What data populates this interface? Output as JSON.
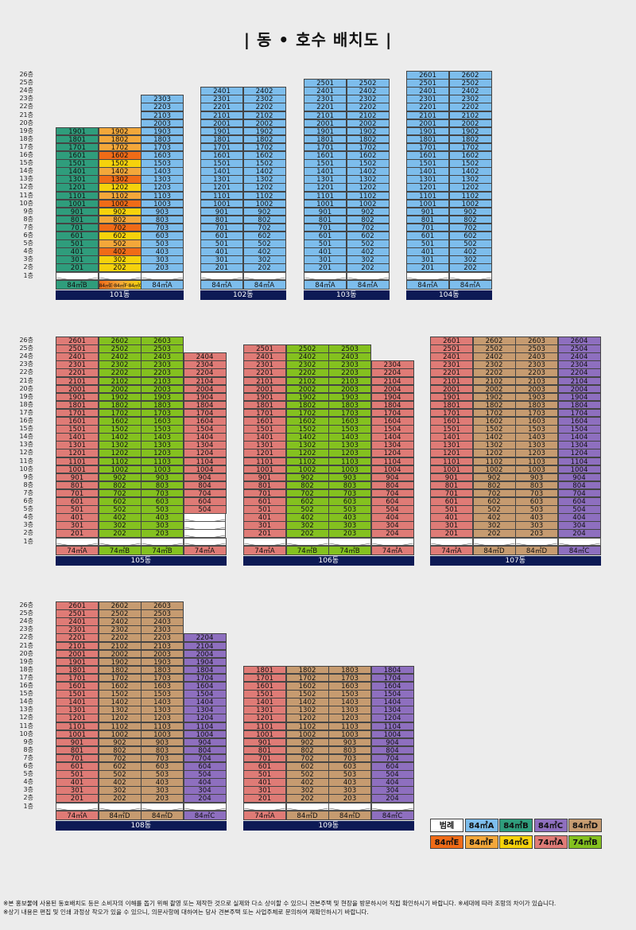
{
  "title": "| 동 • 호수 배치도 |",
  "colors": {
    "84A": "#7dbdec",
    "84B": "#2f9d7c",
    "84C": "#8e6fbf",
    "84D": "#c69b70",
    "84E": "#f06b17",
    "84F": "#f3a73a",
    "84G": "#f5d20c",
    "74A": "#df7b76",
    "74B": "#84c11f",
    "84EFG": "#f3a73a"
  },
  "floor_labels": [
    "26층",
    "25층",
    "24층",
    "23층",
    "22층",
    "21층",
    "20층",
    "19층",
    "18층",
    "17층",
    "16층",
    "15층",
    "14층",
    "13층",
    "12층",
    "11층",
    "10층",
    "9층",
    "8층",
    "7층",
    "6층",
    "5층",
    "4층",
    "3층",
    "2층",
    "1층"
  ],
  "buildings": [
    {
      "name": "101동",
      "lines": [
        {
          "line": "01",
          "max": 19,
          "type": "84B",
          "label": "84㎡B"
        },
        {
          "line": "02",
          "max": 19,
          "type": "84EFG",
          "label": "84㎡E·84㎡F·84㎡G",
          "floor_types": {
            "19": "84F",
            "18": "84F",
            "17": "84F",
            "16": "84E",
            "15": "84G",
            "14": "84F",
            "13": "84E",
            "12": "84G",
            "11": "84F",
            "10": "84E",
            "9": "84G",
            "8": "84F",
            "7": "84E",
            "6": "84G",
            "5": "84F",
            "4": "84E",
            "3": "84G",
            "2": "84G"
          }
        },
        {
          "line": "03",
          "max": 23,
          "type": "84A",
          "label": "84㎡A"
        }
      ]
    },
    {
      "name": "102동",
      "lines": [
        {
          "line": "01",
          "max": 24,
          "type": "84A",
          "label": "84㎡A"
        },
        {
          "line": "02",
          "max": 24,
          "type": "84A",
          "label": "84㎡A"
        }
      ]
    },
    {
      "name": "103동",
      "lines": [
        {
          "line": "01",
          "max": 25,
          "type": "84A",
          "label": "84㎡A"
        },
        {
          "line": "02",
          "max": 25,
          "type": "84A",
          "label": "84㎡A"
        }
      ]
    },
    {
      "name": "104동",
      "lines": [
        {
          "line": "01",
          "max": 26,
          "type": "84A",
          "label": "84㎡A"
        },
        {
          "line": "02",
          "max": 26,
          "type": "84A",
          "label": "84㎡A"
        }
      ]
    },
    {
      "name": "105동",
      "lines": [
        {
          "line": "01",
          "max": 26,
          "type": "74A",
          "label": "74㎡A"
        },
        {
          "line": "02",
          "max": 26,
          "type": "74B",
          "label": "74㎡B"
        },
        {
          "line": "03",
          "max": 26,
          "type": "74B",
          "label": "74㎡B"
        },
        {
          "line": "04",
          "max": 24,
          "min": 5,
          "type": "74A",
          "label": "74㎡A"
        }
      ]
    },
    {
      "name": "106동",
      "lines": [
        {
          "line": "01",
          "max": 25,
          "type": "74A",
          "label": "74㎡A"
        },
        {
          "line": "02",
          "max": 25,
          "type": "74B",
          "label": "74㎡B"
        },
        {
          "line": "03",
          "max": 25,
          "type": "74B",
          "label": "74㎡B"
        },
        {
          "line": "04",
          "max": 23,
          "type": "74A",
          "label": "74㎡A"
        }
      ]
    },
    {
      "name": "107동",
      "lines": [
        {
          "line": "01",
          "max": 26,
          "type": "74A",
          "label": "74㎡A"
        },
        {
          "line": "02",
          "max": 26,
          "type": "84D",
          "label": "84㎡D"
        },
        {
          "line": "03",
          "max": 26,
          "type": "84D",
          "label": "84㎡D"
        },
        {
          "line": "04",
          "max": 26,
          "type": "84C",
          "label": "84㎡C"
        }
      ]
    },
    {
      "name": "108동",
      "lines": [
        {
          "line": "01",
          "max": 26,
          "type": "74A",
          "label": "74㎡A"
        },
        {
          "line": "02",
          "max": 26,
          "type": "84D",
          "label": "84㎡D"
        },
        {
          "line": "03",
          "max": 26,
          "type": "84D",
          "label": "84㎡D"
        },
        {
          "line": "04",
          "max": 22,
          "type": "84C",
          "label": "84㎡C"
        }
      ]
    },
    {
      "name": "109동",
      "lines": [
        {
          "line": "01",
          "max": 18,
          "type": "74A",
          "label": "74㎡A"
        },
        {
          "line": "02",
          "max": 18,
          "type": "84D",
          "label": "84㎡D"
        },
        {
          "line": "03",
          "max": 18,
          "type": "84D",
          "label": "84㎡D"
        },
        {
          "line": "04",
          "max": 18,
          "type": "84C",
          "label": "84㎡C"
        }
      ]
    }
  ],
  "legend": {
    "title": "범례",
    "items": [
      {
        "label": "84㎡A",
        "type": "84A"
      },
      {
        "label": "84㎡B",
        "type": "84B"
      },
      {
        "label": "84㎡C",
        "type": "84C"
      },
      {
        "label": "84㎡D",
        "type": "84D"
      },
      {
        "label": "84㎡E",
        "type": "84E"
      },
      {
        "label": "84㎡F",
        "type": "84F"
      },
      {
        "label": "84㎡G",
        "type": "84G"
      },
      {
        "label": "74㎡A",
        "type": "74A"
      },
      {
        "label": "74㎡B",
        "type": "74B"
      }
    ]
  },
  "footnotes": [
    "※본 홍보물에 사용된 동호배치도 등은 소비자의 이해를 돕기 위해 촬영 또는 제작한 것으로 실제와 다소 상이할 수 있으니 견본주택 및 현장을 방문하시어 직접 확인하시기 바랍니다. ※세대에 따라 조망의 차이가 있습니다.",
    "※상기 내용은 편집 및 인쇄 과정상 착오가 있을 수 있으니, 의문사항에 대하여는 당사 견본주택 또는 사업주체로 문의하여 재확인하시기 바랍니다."
  ]
}
